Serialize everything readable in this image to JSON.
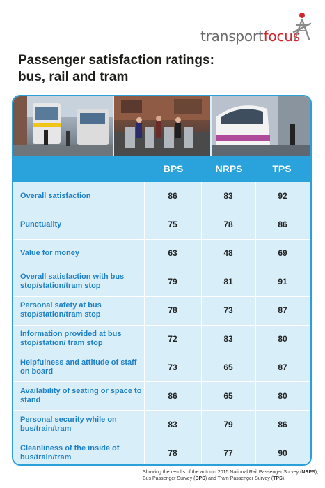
{
  "brand": {
    "word1": "transport",
    "word2": "focus",
    "accent": "#d0262e",
    "grey": "#6b6b6b"
  },
  "title": {
    "line1": "Passenger satisfaction ratings:",
    "line2": "bus, rail and tram"
  },
  "photos": [
    {
      "icon": "bus-street-photo"
    },
    {
      "icon": "station-gates-photo"
    },
    {
      "icon": "tram-photo"
    }
  ],
  "chart_data": {
    "type": "table",
    "columns": [
      "BPS",
      "NRPS",
      "TPS"
    ],
    "rows": [
      {
        "label": "Overall satisfaction",
        "values": [
          86,
          83,
          92
        ]
      },
      {
        "label": "Punctuality",
        "values": [
          75,
          78,
          86
        ]
      },
      {
        "label": "Value for money",
        "values": [
          63,
          48,
          69
        ]
      },
      {
        "label": "Overall satisfaction with bus stop/station/tram stop",
        "values": [
          79,
          81,
          91
        ]
      },
      {
        "label": "Personal safety at bus stop/station/tram stop",
        "values": [
          78,
          73,
          87
        ]
      },
      {
        "label": "Information provided at bus stop/station/ tram stop",
        "values": [
          72,
          83,
          80
        ]
      },
      {
        "label": "Helpfulness and attitude of staff on board",
        "values": [
          73,
          65,
          87
        ]
      },
      {
        "label": "Availability of seating or space to stand",
        "values": [
          86,
          65,
          80
        ]
      },
      {
        "label": "Personal security while on bus/train/tram",
        "values": [
          83,
          79,
          86
        ]
      },
      {
        "label": "Cleanliness of the inside of bus/train/tram",
        "values": [
          78,
          77,
          90
        ]
      }
    ],
    "colors": {
      "header": "#2aa3dc",
      "label": "#1f7fc4",
      "body": "#d8effa"
    }
  },
  "footnote": {
    "part1": "Showing the results of the autumn 2015 National Rail Passenger Survey (",
    "b1": "NRPS",
    "part2": "), Bus Passenger Survey (",
    "b2": "BPS",
    "part3": ") and Tram Passenger Survey (",
    "b3": "TPS",
    "part4": ")."
  }
}
